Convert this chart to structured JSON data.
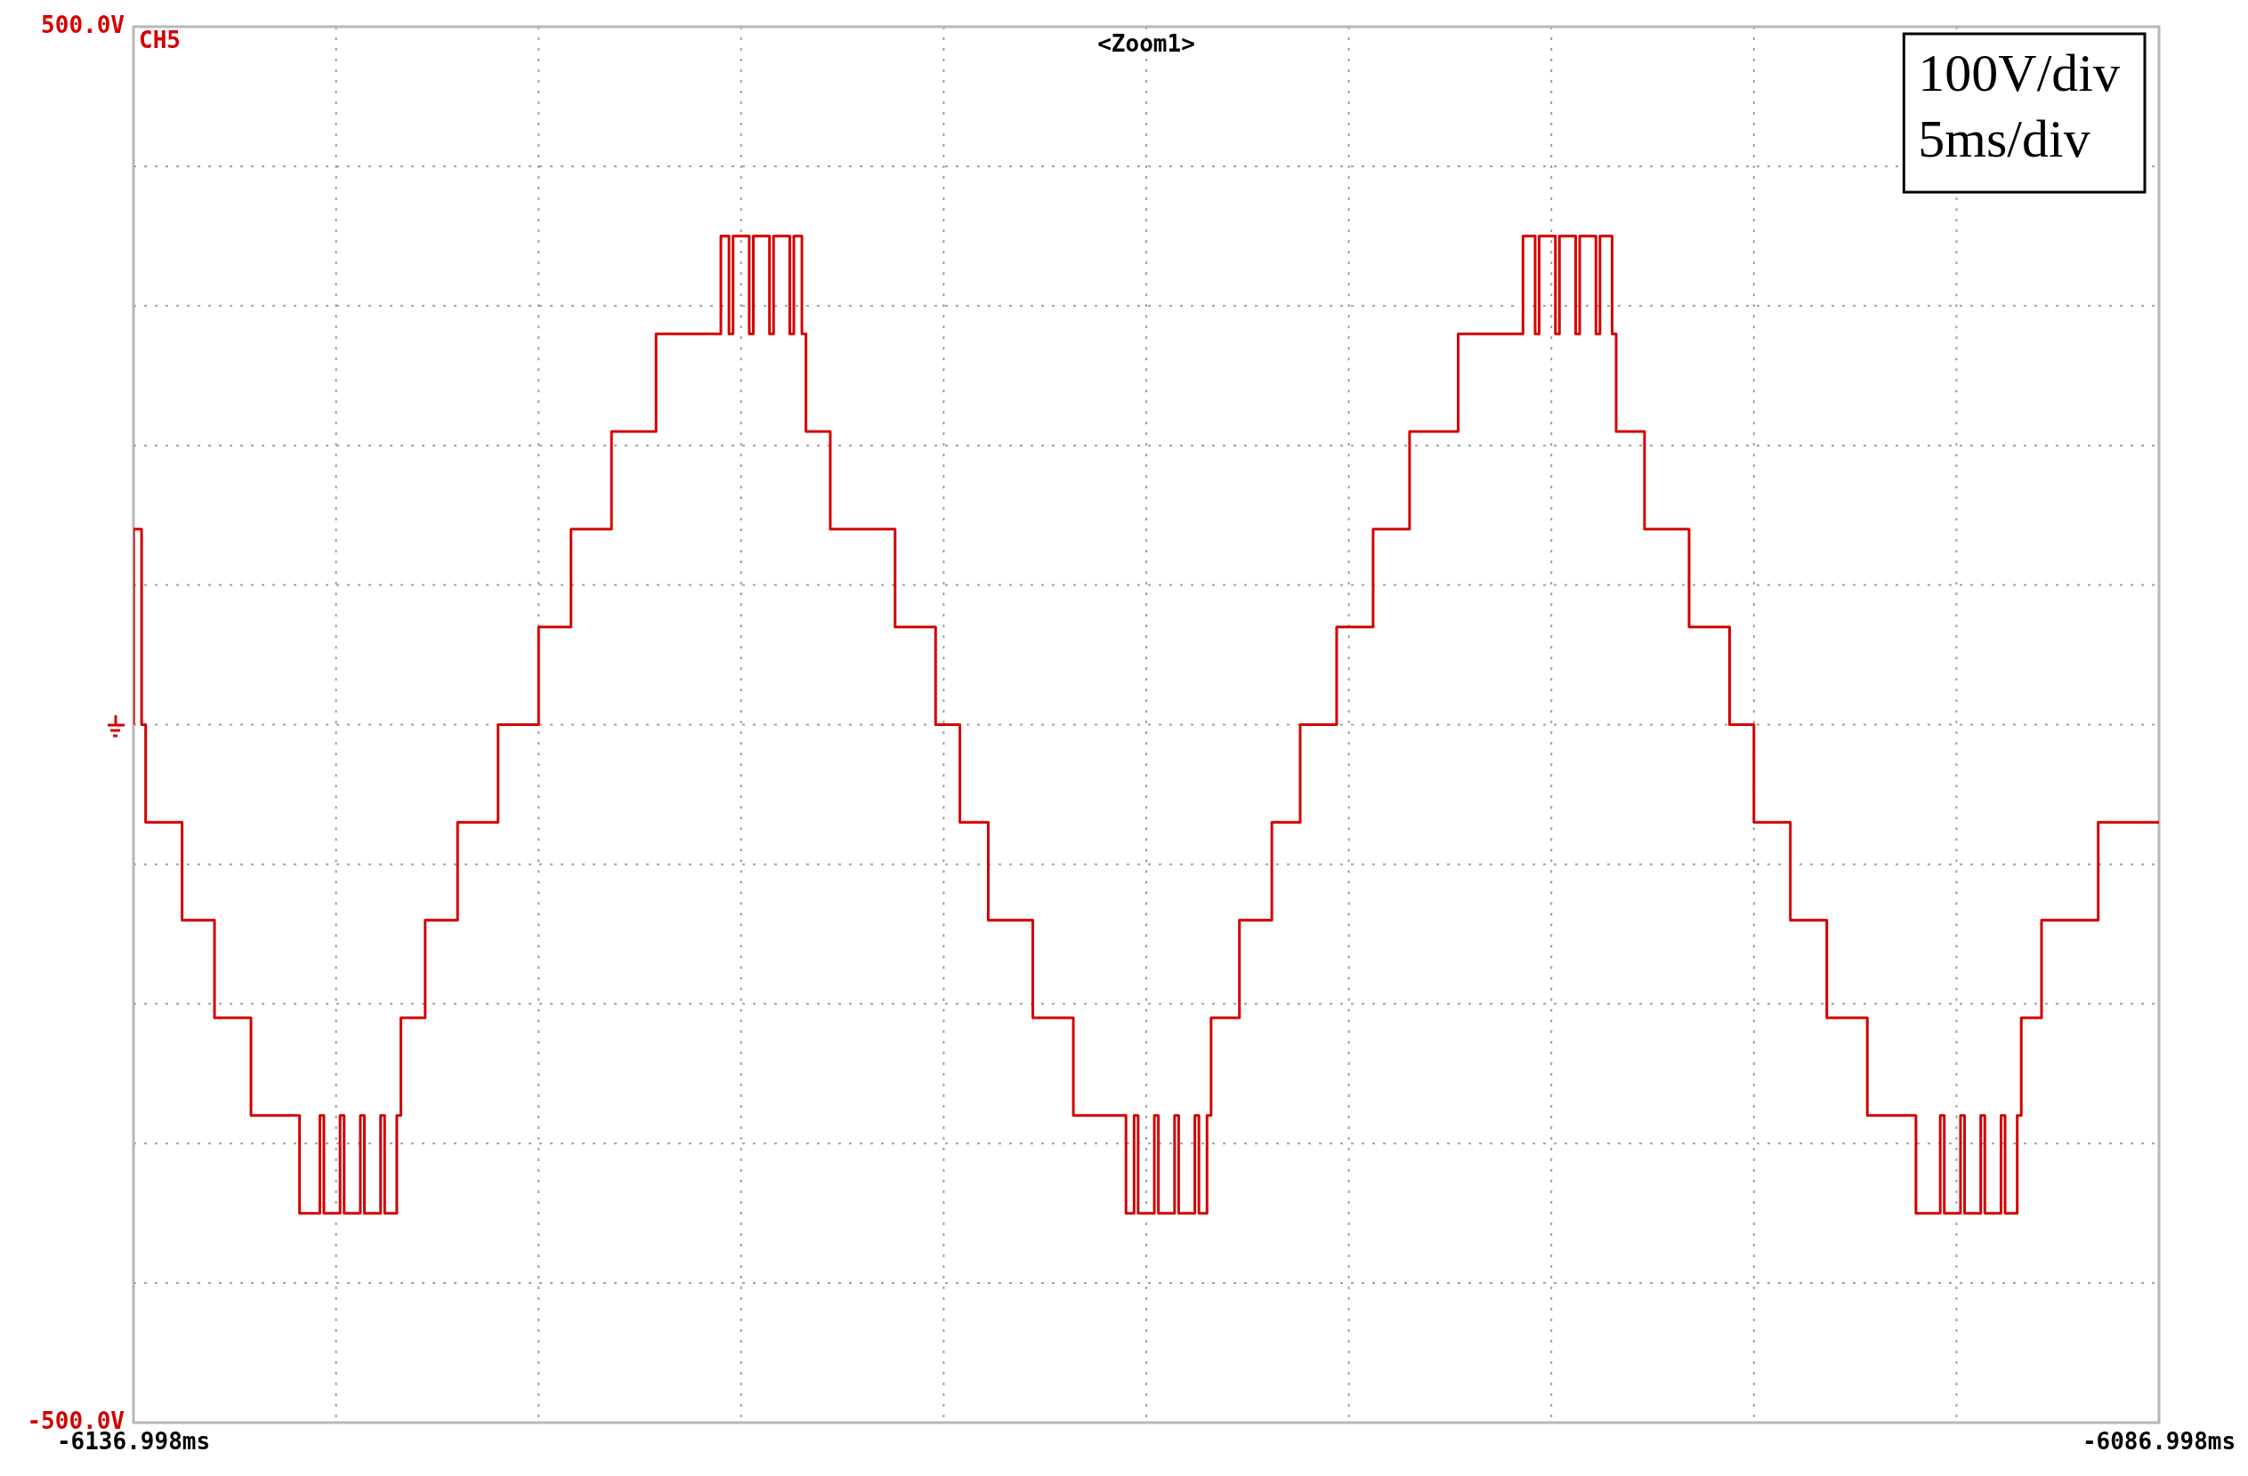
{
  "chart_data": {
    "type": "step",
    "title": "<Zoom1>",
    "annotations": [
      "CH5",
      "100V/div",
      "5ms/div"
    ],
    "x": [
      -6136.998,
      -6136.798,
      -6136.698,
      -6135.798,
      -6134.998,
      -6134.098,
      -6132.898,
      -6132.398,
      -6132.298,
      -6131.898,
      -6131.798,
      -6131.398,
      -6131.298,
      -6130.898,
      -6130.798,
      -6130.498,
      -6130.398,
      -6129.798,
      -6128.998,
      -6127.998,
      -6126.998,
      -6126.198,
      -6125.198,
      -6124.098,
      -6122.498,
      -6122.298,
      -6122.198,
      -6121.798,
      -6121.698,
      -6121.298,
      -6121.198,
      -6120.798,
      -6120.698,
      -6120.498,
      -6120.398,
      -6119.798,
      -6118.198,
      -6117.198,
      -6116.598,
      -6115.898,
      -6114.798,
      -6113.798,
      -6112.498,
      -6112.298,
      -6112.198,
      -6111.798,
      -6111.698,
      -6111.298,
      -6111.198,
      -6110.798,
      -6110.698,
      -6110.498,
      -6110.398,
      -6109.698,
      -6108.898,
      -6108.198,
      -6107.298,
      -6106.398,
      -6105.498,
      -6104.298,
      -6102.698,
      -6102.398,
      -6102.298,
      -6101.898,
      -6101.798,
      -6101.398,
      -6101.298,
      -6100.898,
      -6100.798,
      -6100.498,
      -6100.398,
      -6099.698,
      -6098.598,
      -6097.598,
      -6096.998,
      -6096.098,
      -6095.198,
      -6094.198,
      -6092.998,
      -6092.398,
      -6092.298,
      -6091.898,
      -6091.798,
      -6091.398,
      -6091.298,
      -6090.898,
      -6090.798,
      -6090.498,
      -6090.398,
      -6089.898,
      -6088.498,
      -6087.798,
      -6086.998
    ],
    "series": [
      {
        "color": "#d40000",
        "values": [
          0,
          140,
          0,
          -70,
          -140,
          -210,
          -280,
          -350,
          -280,
          -350,
          -280,
          -350,
          -280,
          -350,
          -280,
          -350,
          -280,
          -210,
          -140,
          -70,
          0,
          70,
          140,
          210,
          280,
          350,
          280,
          350,
          280,
          350,
          280,
          350,
          280,
          350,
          280,
          210,
          140,
          70,
          0,
          -70,
          -140,
          -210,
          -280,
          -350,
          -280,
          -350,
          -280,
          -350,
          -280,
          -350,
          -280,
          -350,
          -280,
          -210,
          -140,
          -70,
          0,
          70,
          140,
          210,
          280,
          350,
          280,
          350,
          280,
          350,
          280,
          350,
          280,
          350,
          280,
          210,
          140,
          70,
          0,
          -70,
          -140,
          -210,
          -280,
          -350,
          -280,
          -350,
          -280,
          -350,
          -280,
          -350,
          -280,
          -350,
          -280,
          -210,
          -140,
          -70,
          -70
        ]
      }
    ],
    "xlim": [
      -6136.998,
      -6086.998
    ],
    "ylim": [
      -500,
      500
    ],
    "xticks": [
      {
        "value": -6136.998,
        "label": "-6136.998ms"
      },
      {
        "value": -6131.998,
        "label": null
      },
      {
        "value": -6126.998,
        "label": null
      },
      {
        "value": -6121.998,
        "label": null
      },
      {
        "value": -6116.998,
        "label": null
      },
      {
        "value": -6111.998,
        "label": null
      },
      {
        "value": -6106.998,
        "label": null
      },
      {
        "value": -6101.998,
        "label": null
      },
      {
        "value": -6096.998,
        "label": null
      },
      {
        "value": -6091.998,
        "label": null
      },
      {
        "value": -6086.998,
        "label": "-6086.998ms"
      }
    ],
    "yticks": [
      {
        "value": -500,
        "label": "-500.0V"
      },
      {
        "value": -400,
        "label": null
      },
      {
        "value": -300,
        "label": null
      },
      {
        "value": -200,
        "label": null
      },
      {
        "value": -100,
        "label": null
      },
      {
        "value": 0,
        "label": null
      },
      {
        "value": 100,
        "label": null
      },
      {
        "value": 200,
        "label": null
      },
      {
        "value": 300,
        "label": null
      },
      {
        "value": 400,
        "label": null
      },
      {
        "value": 500,
        "label": "500.0V"
      }
    ],
    "grid": true
  }
}
